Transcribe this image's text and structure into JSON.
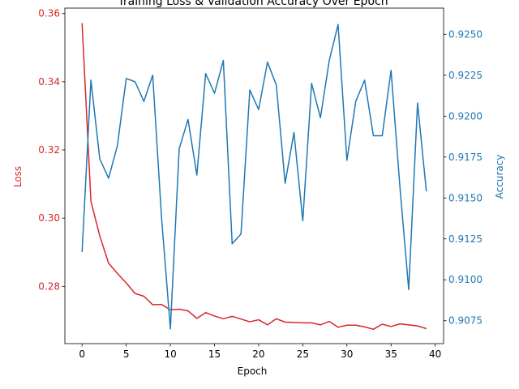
{
  "chart_data": {
    "type": "line",
    "title": "Training Loss & Validation Accuracy Over Epoch",
    "xlabel": "Epoch",
    "x": [
      0,
      1,
      2,
      3,
      4,
      5,
      6,
      7,
      8,
      9,
      10,
      11,
      12,
      13,
      14,
      15,
      16,
      17,
      18,
      19,
      20,
      21,
      22,
      23,
      24,
      25,
      26,
      27,
      28,
      29,
      30,
      31,
      32,
      33,
      34,
      35,
      36,
      37,
      38,
      39
    ],
    "xlim": [
      -1.95,
      40.95
    ],
    "xticks": [
      "0",
      "5",
      "10",
      "15",
      "20",
      "25",
      "30",
      "35",
      "40"
    ],
    "left_axis": {
      "label": "Loss",
      "color": "#d62728",
      "ylim": [
        0.2632,
        0.3616
      ],
      "ticks": [
        "0.28",
        "0.30",
        "0.32",
        "0.34",
        "0.36"
      ]
    },
    "right_axis": {
      "label": "Accuracy",
      "color": "#1f77b4",
      "ylim": [
        0.9061,
        0.9266
      ],
      "ticks": [
        "0.9075",
        "0.9100",
        "0.9125",
        "0.9150",
        "0.9175",
        "0.9200",
        "0.9225",
        "0.9250"
      ]
    },
    "series": [
      {
        "axis": "left",
        "color": "#d62728",
        "values": [
          0.3572,
          0.305,
          0.2948,
          0.2868,
          0.2838,
          0.281,
          0.2779,
          0.2771,
          0.2746,
          0.2747,
          0.2731,
          0.2733,
          0.2728,
          0.2706,
          0.2723,
          0.2713,
          0.2705,
          0.2712,
          0.2704,
          0.2696,
          0.2702,
          0.2687,
          0.2705,
          0.2695,
          0.2694,
          0.2693,
          0.2693,
          0.2687,
          0.2697,
          0.268,
          0.2686,
          0.2686,
          0.2681,
          0.2674,
          0.2689,
          0.2682,
          0.269,
          0.2687,
          0.2684,
          0.2676
        ]
      },
      {
        "axis": "right",
        "color": "#1f77b4",
        "values": [
          0.9117,
          0.9222,
          0.9174,
          0.9162,
          0.9182,
          0.9223,
          0.9221,
          0.9209,
          0.9225,
          0.9138,
          0.907,
          0.918,
          0.9198,
          0.9164,
          0.9226,
          0.9214,
          0.9234,
          0.9122,
          0.9128,
          0.9216,
          0.9204,
          0.9233,
          0.9219,
          0.9159,
          0.919,
          0.9136,
          0.922,
          0.9199,
          0.9234,
          0.9256,
          0.9173,
          0.9209,
          0.9222,
          0.9188,
          0.9188,
          0.9228,
          0.9157,
          0.9094,
          0.9208,
          0.9154
        ]
      }
    ]
  }
}
